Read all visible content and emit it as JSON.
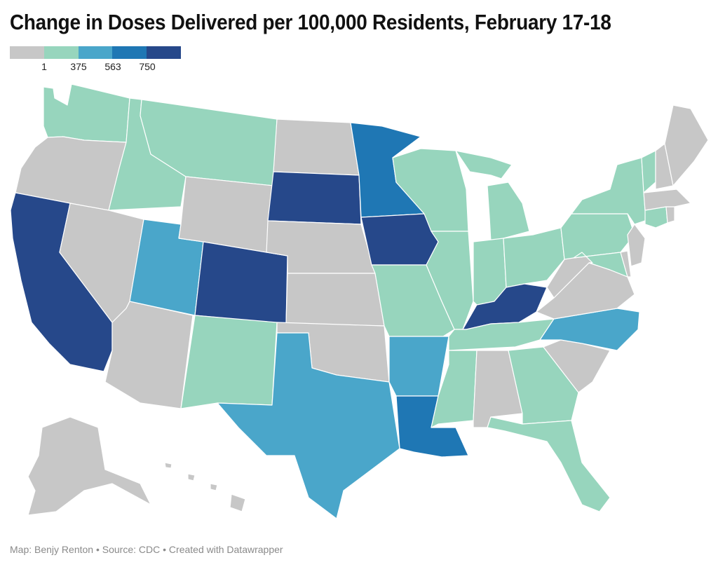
{
  "title": "Change in Doses Delivered per 100,000 Residents, February 17-18",
  "legend": {
    "colors": [
      "#c7c7c7",
      "#97d5bd",
      "#4aa6ca",
      "#1f77b4",
      "#26488a"
    ],
    "ticks": [
      "1",
      "375",
      "563",
      "750"
    ]
  },
  "footer": {
    "credit": "Map: Benjy Renton",
    "source": "Source: CDC",
    "tool": "Created with Datawrapper",
    "separator": "•"
  },
  "map_data": {
    "bins": [
      "#c7c7c7",
      "#97d5bd",
      "#4aa6ca",
      "#1f77b4",
      "#26488a"
    ],
    "states": {
      "WA": 1,
      "OR": 0,
      "CA": 4,
      "ID": 1,
      "NV": 0,
      "AZ": 0,
      "UT": 2,
      "MT": 1,
      "WY": 0,
      "CO": 4,
      "NM": 1,
      "ND": 0,
      "SD": 4,
      "NE": 0,
      "KS": 0,
      "OK": 0,
      "TX": 2,
      "MN": 3,
      "IA": 4,
      "MO": 1,
      "AR": 2,
      "LA": 3,
      "WI": 1,
      "IL": 1,
      "MI": 1,
      "IN": 1,
      "OH": 1,
      "KY": 4,
      "TN": 1,
      "MS": 1,
      "AL": 0,
      "GA": 1,
      "FL": 1,
      "SC": 0,
      "NC": 2,
      "VA": 0,
      "WV": 0,
      "MD": 1,
      "DE": 0,
      "PA": 1,
      "NJ": 0,
      "NY": 1,
      "CT": 1,
      "RI": 0,
      "MA": 0,
      "VT": 1,
      "NH": 0,
      "ME": 0,
      "AK": 0,
      "HI": 0
    }
  }
}
